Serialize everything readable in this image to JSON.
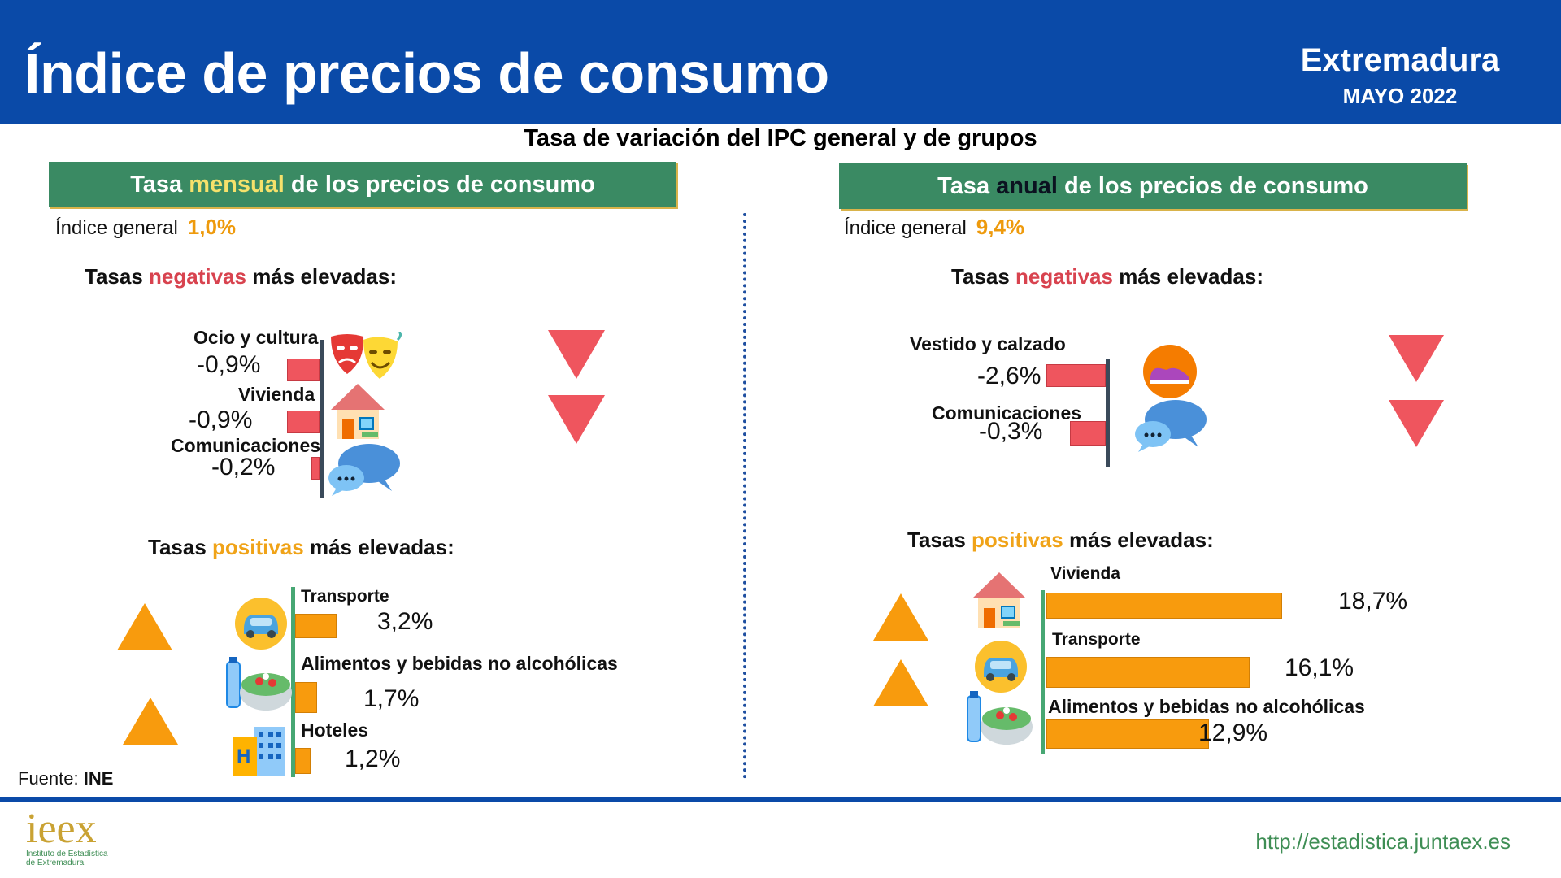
{
  "header": {
    "title": "Índice de precios de consumo",
    "region": "Extremadura",
    "date": "MAYO 2022"
  },
  "subtitle": "Tasa de variación del IPC general y de grupos",
  "monthly": {
    "head_pre": "Tasa ",
    "head_hl": "mensual",
    "head_post": " de los precios de consumo",
    "general_label": "Índice general",
    "general_value": "1,0%",
    "neg_pre": "Tasas ",
    "neg_hl": "negativas",
    "neg_post": " más elevadas:",
    "pos_pre": "Tasas ",
    "pos_hl": "positivas",
    "pos_post": " más elevadas:"
  },
  "annual": {
    "head_pre": "Tasa ",
    "head_hl": "anual",
    "head_post": " de los precios de consumo",
    "general_label": "Índice general",
    "general_value": "9,4%",
    "neg_pre": "Tasas ",
    "neg_hl": "negativas",
    "neg_post": " más elevadas:",
    "pos_pre": "Tasas ",
    "pos_hl": "positivas",
    "pos_post": " más elevadas:"
  },
  "colors": {
    "header": "#0a4aa8",
    "panel": "#3a8a63",
    "negative": "#ef555e",
    "positive": "#f89b0d",
    "url": "#3f8e55"
  },
  "chart_data": [
    {
      "type": "bar",
      "name": "Tasa mensual - negativas",
      "categories": [
        "Ocio y cultura",
        "Vivienda",
        "Comunicaciones"
      ],
      "values": [
        -0.9,
        -0.9,
        -0.2
      ],
      "labels": [
        "-0,9%",
        "-0,9%",
        "-0,2%"
      ],
      "icons": [
        "theater-masks-icon",
        "house-icon",
        "chat-bubbles-icon"
      ]
    },
    {
      "type": "bar",
      "name": "Tasa mensual - positivas",
      "categories": [
        "Transporte",
        "Alimentos y bebidas no alcohólicas",
        "Hoteles"
      ],
      "values": [
        3.2,
        1.7,
        1.2
      ],
      "labels": [
        "3,2%",
        "1,7%",
        "1,2%"
      ],
      "icons": [
        "car-icon",
        "salad-icon",
        "hotel-icon"
      ]
    },
    {
      "type": "bar",
      "name": "Tasa anual - negativas",
      "categories": [
        "Vestido y calzado",
        "Comunicaciones"
      ],
      "values": [
        -2.6,
        -0.3
      ],
      "labels": [
        "-2,6%",
        "-0,3%"
      ],
      "icons": [
        "shoe-icon",
        "chat-bubbles-icon"
      ]
    },
    {
      "type": "bar",
      "name": "Tasa anual - positivas",
      "categories": [
        "Vivienda",
        "Transporte",
        "Alimentos y bebidas no alcohólicas"
      ],
      "values": [
        18.7,
        16.1,
        12.9
      ],
      "labels": [
        "18,7%",
        "16,1%",
        "12,9%"
      ],
      "icons": [
        "house-icon",
        "car-icon",
        "salad-icon"
      ]
    }
  ],
  "footer": {
    "source_label": "Fuente: ",
    "source_value": "INE",
    "logo_text": "ieex",
    "logo_line1": "Instituto de Estadística",
    "logo_line2": "de Extremadura",
    "url": "http://estadistica.juntaex.es"
  }
}
